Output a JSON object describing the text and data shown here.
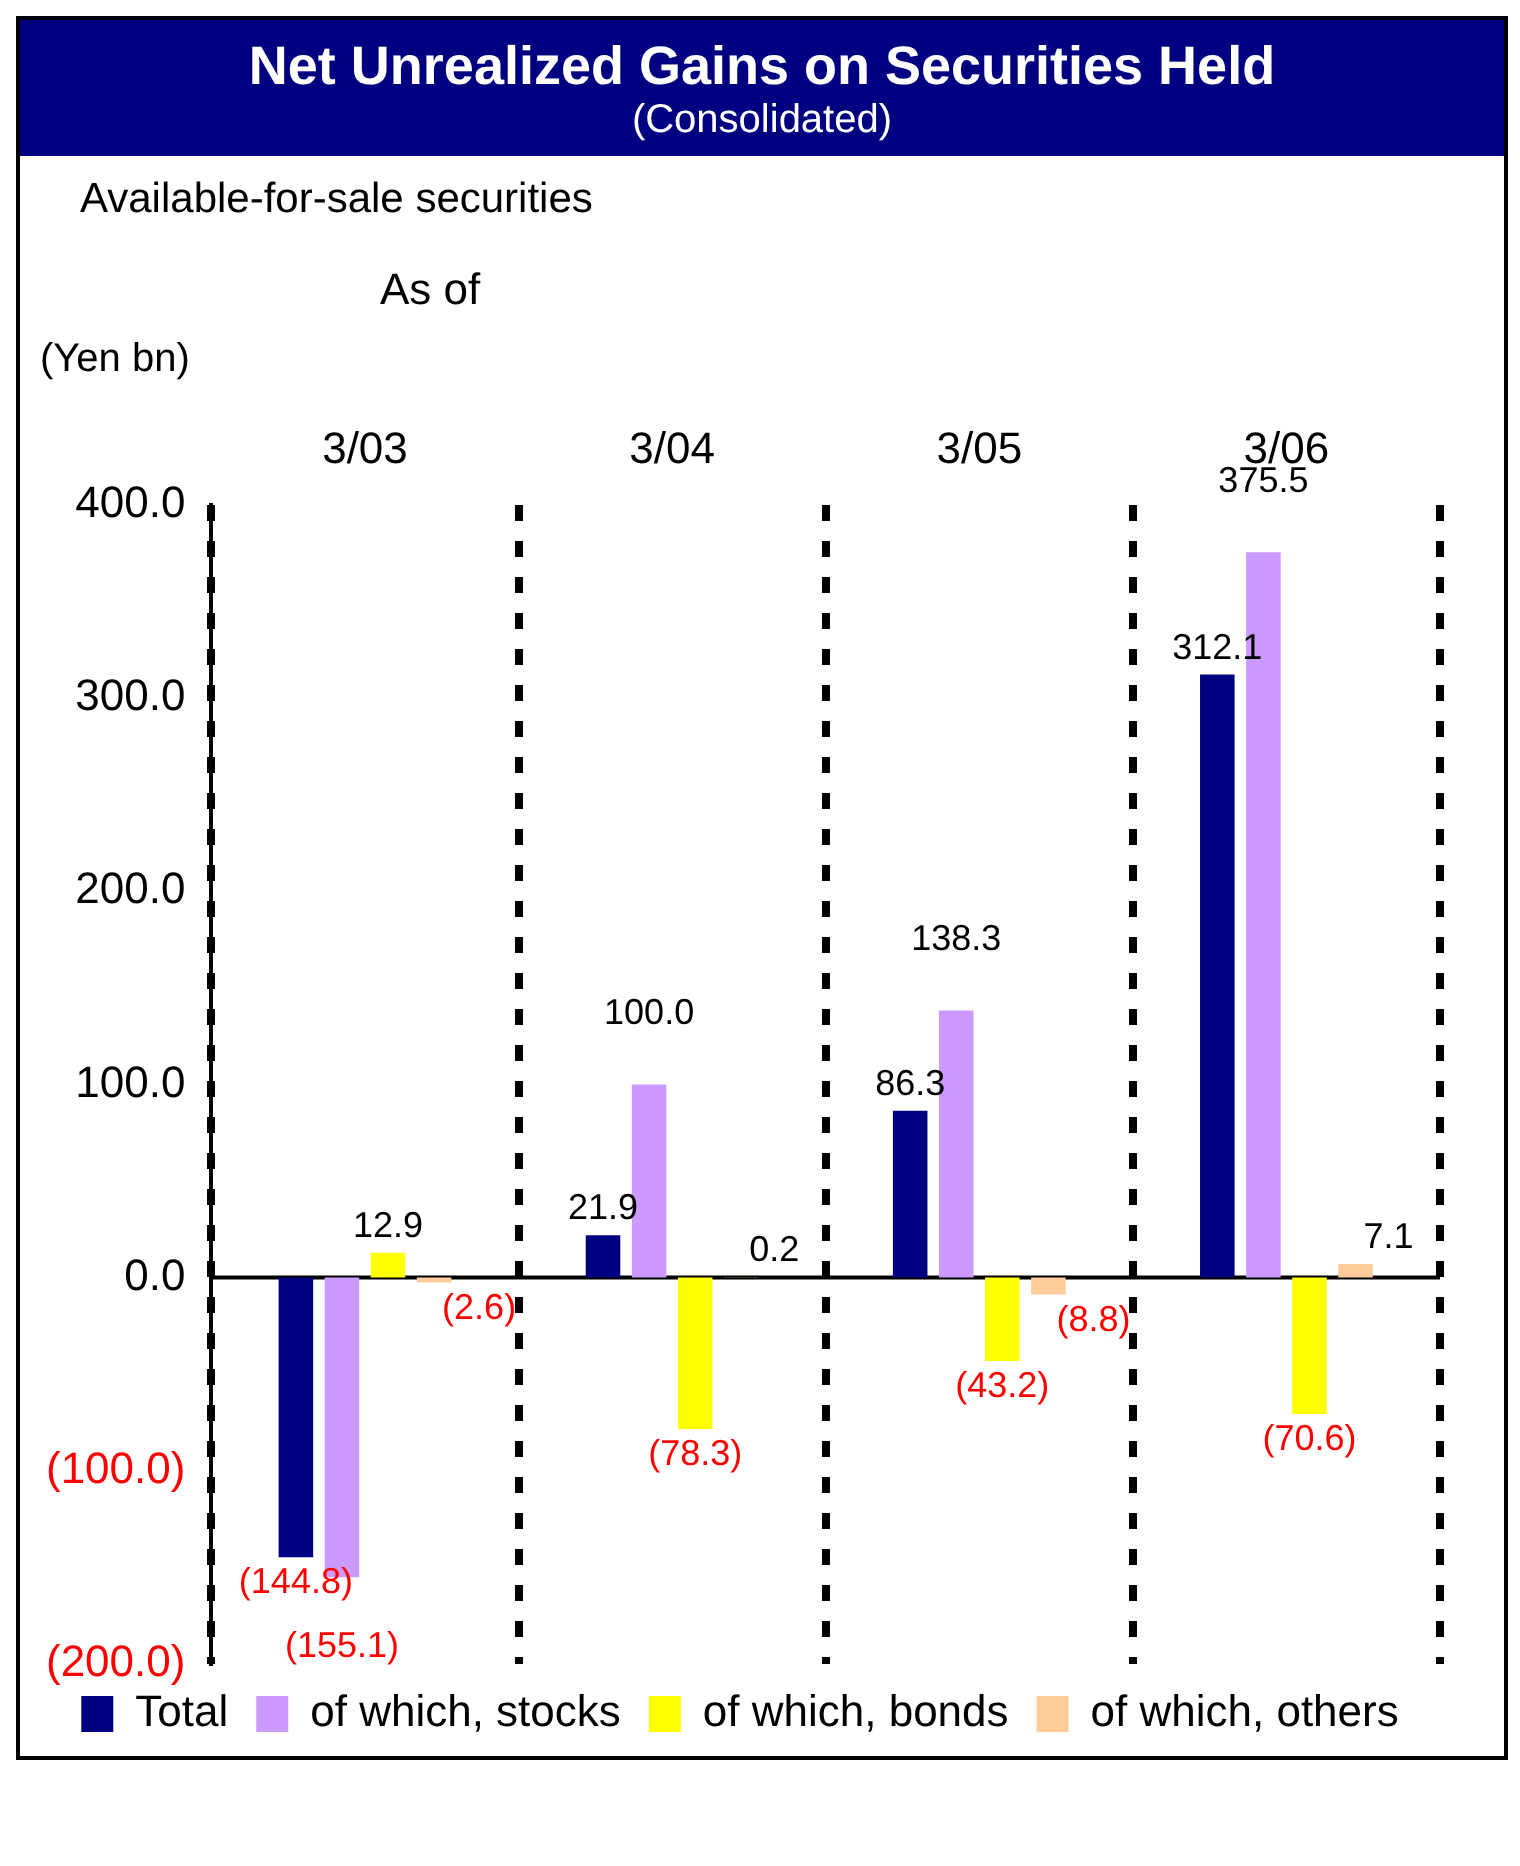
{
  "chart_data": {
    "type": "bar",
    "title": "Net Unrealized Gains on Securities Held",
    "subtitle": "(Consolidated)",
    "annotations": [
      "Available-for-sale securities",
      "As of"
    ],
    "ylabel": "(Yen bn)",
    "categories": [
      "3/03",
      "3/04",
      "3/05",
      "3/06"
    ],
    "series": [
      {
        "name": "Total",
        "color": "#000080",
        "values": [
          -144.8,
          21.9,
          86.3,
          312.1
        ],
        "value_labels": [
          "(144.8)",
          "21.9",
          "86.3",
          "312.1"
        ]
      },
      {
        "name": "of which, stocks",
        "color": "#cc99ff",
        "values": [
          -155.1,
          100.0,
          138.3,
          375.5
        ],
        "value_labels": [
          "(155.1)",
          "100.0",
          "138.3",
          "375.5"
        ]
      },
      {
        "name": "of which, bonds",
        "color": "#ffff00",
        "values": [
          12.9,
          -78.3,
          -43.2,
          -70.6
        ],
        "value_labels": [
          "12.9",
          "(78.3)",
          "(43.2)",
          "(70.6)"
        ]
      },
      {
        "name": "of which, others",
        "color": "#ffcc99",
        "values": [
          -2.6,
          0.2,
          -8.8,
          7.1
        ],
        "value_labels": [
          "(2.6)",
          "0.2",
          "(8.8)",
          "7.1"
        ]
      }
    ],
    "ylim": [
      -200,
      400
    ],
    "yticks": [
      {
        "value": -200,
        "label": "(200.0)"
      },
      {
        "value": -100,
        "label": "(100.0)"
      },
      {
        "value": 0,
        "label": "0.0"
      },
      {
        "value": 100,
        "label": "100.0"
      },
      {
        "value": 200,
        "label": "200.0"
      },
      {
        "value": 300,
        "label": "300.0"
      },
      {
        "value": 400,
        "label": "400.0"
      }
    ],
    "grid": "x",
    "legend": "bottom"
  }
}
